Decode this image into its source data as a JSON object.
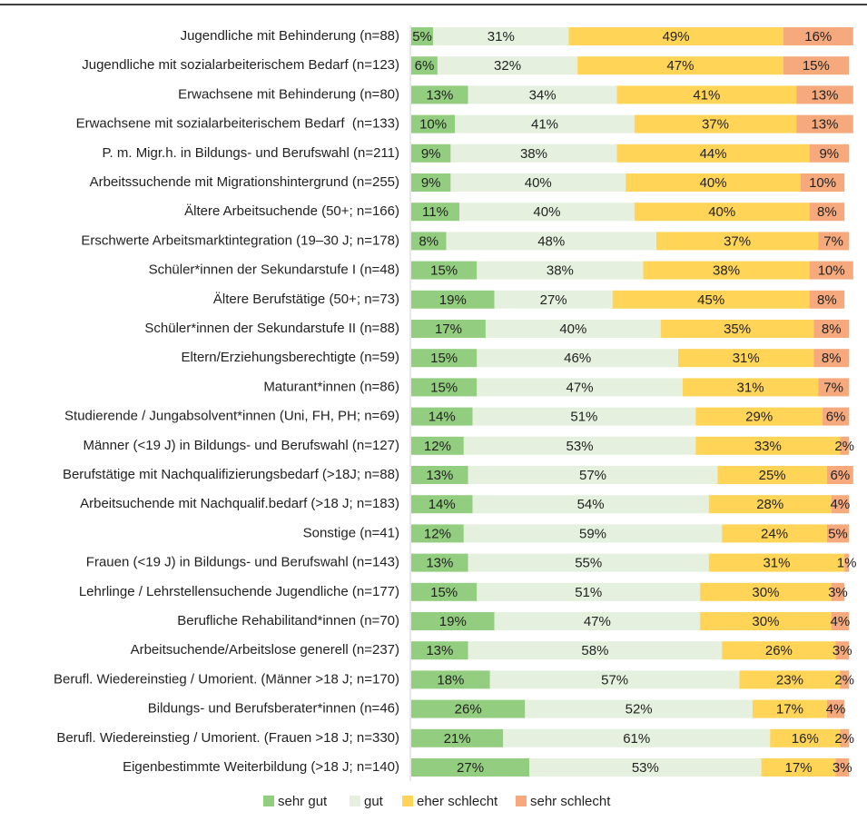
{
  "chart_data": {
    "type": "stacked_barh",
    "categories": [
      "Jugendliche mit Behinderung (n=88)",
      "Jugendliche mit sozialarbeiterischem Bedarf (n=123)",
      "Erwachsene mit Behinderung (n=80)",
      "Erwachsene mit sozialarbeiterischem Bedarf  (n=133)",
      "P. m. Migr.h. in Bildungs- und Berufswahl (n=211)",
      "Arbeitssuchende mit Migrationshintergrund (n=255)",
      "Ältere Arbeitsuchende (50+; n=166)",
      "Erschwerte Arbeitsmarktintegration (19–30 J; n=178)",
      "Schüler*innen der Sekundarstufe I (n=48)",
      "Ältere Berufstätige (50+; n=73)",
      "Schüler*innen der Sekundarstufe II (n=88)",
      "Eltern/Erziehungsberechtigte (n=59)",
      "Maturant*innen (n=86)",
      "Studierende / Jungabsolvent*innen (Uni, FH, PH; n=69)",
      "Männer (<19 J) in Bildungs- und Berufswahl (n=127)",
      "Berufstätige mit Nachqualifizierungsbedarf (>18J; n=88)",
      "Arbeitsuchende mit Nachqualif.bedarf (>18 J; n=183)",
      "Sonstige (n=41)",
      "Frauen (<19 J) in Bildungs- und Berufswahl (n=143)",
      "Lehrlinge / Lehrstellensuchende Jugendliche (n=177)",
      "Berufliche Rehabilitand*innen (n=70)",
      "Arbeitsuchende/Arbeitslose generell (n=237)",
      "Berufl. Wiedereinstieg / Umorient. (Männer >18 J; n=170)",
      "Bildungs- und Berufsberater*innen (n=46)",
      "Berufl. Wiedereinstieg / Umorient. (Frauen >18 J; n=330)",
      "Eigenbestimmte Weiterbildung (>18 J; n=140)"
    ],
    "series": [
      {
        "name": "sehr gut",
        "color": "#93cd7f",
        "values": [
          5,
          6,
          13,
          10,
          9,
          9,
          11,
          8,
          15,
          19,
          17,
          15,
          15,
          14,
          12,
          13,
          14,
          12,
          13,
          15,
          19,
          13,
          18,
          26,
          21,
          27
        ],
        "value_labels": [
          "5%",
          "6%",
          "13%",
          "10%",
          "9%",
          "9%",
          "11%",
          "8%",
          "15%",
          "19%",
          "17%",
          "15%",
          "15%",
          "14%",
          "12%",
          "13%",
          "14%",
          "12%",
          "13%",
          "15%",
          "19%",
          "13%",
          "18%",
          "26%",
          "21%",
          "27%"
        ]
      },
      {
        "name": "gut",
        "color": "#e5f1de",
        "values": [
          31,
          32,
          34,
          41,
          38,
          40,
          40,
          48,
          38,
          27,
          40,
          46,
          47,
          51,
          53,
          57,
          54,
          59,
          55,
          51,
          47,
          58,
          57,
          52,
          61,
          53
        ],
        "value_labels": [
          "31%",
          "32%",
          "34%",
          "41%",
          "38%",
          "40%",
          "40%",
          "48%",
          "38%",
          "27%",
          "40%",
          "46%",
          "47%",
          "51%",
          "53%",
          "57%",
          "54%",
          "59%",
          "55%",
          "51%",
          "47%",
          "58%",
          "57%",
          "52%",
          "61%",
          "53%"
        ]
      },
      {
        "name": "eher schlecht",
        "color": "#ffd457",
        "values": [
          49,
          47,
          41,
          37,
          44,
          40,
          40,
          37,
          38,
          45,
          35,
          31,
          31,
          29,
          33,
          25,
          28,
          24,
          31,
          30,
          30,
          26,
          23,
          17,
          16,
          17
        ],
        "value_labels": [
          "49%",
          "47%",
          "41%",
          "37%",
          "44%",
          "40%",
          "40%",
          "37%",
          "38%",
          "45%",
          "35%",
          "31%",
          "31%",
          "29%",
          "33%",
          "25%",
          "28%",
          "24%",
          "31%",
          "30%",
          "30%",
          "26%",
          "23%",
          "17%",
          "16%",
          "17%"
        ]
      },
      {
        "name": "sehr schlecht",
        "color": "#f5a97d",
        "values": [
          16,
          15,
          13,
          13,
          9,
          10,
          8,
          7,
          10,
          8,
          8,
          8,
          7,
          6,
          2,
          6,
          4,
          5,
          1,
          3,
          4,
          3,
          2,
          4,
          2,
          3
        ],
        "value_labels": [
          "16%",
          "15%",
          "13%",
          "13%",
          "9%",
          "10%",
          "8%",
          "7%",
          "10%",
          "8%",
          "8%",
          "8%",
          "7%",
          "6%",
          "2%",
          "6%",
          "4%",
          "5%",
          "1%",
          "3%",
          "4%",
          "3%",
          "2%",
          "4%",
          "2%",
          "3%"
        ]
      }
    ],
    "xlim": [
      0,
      100
    ]
  }
}
